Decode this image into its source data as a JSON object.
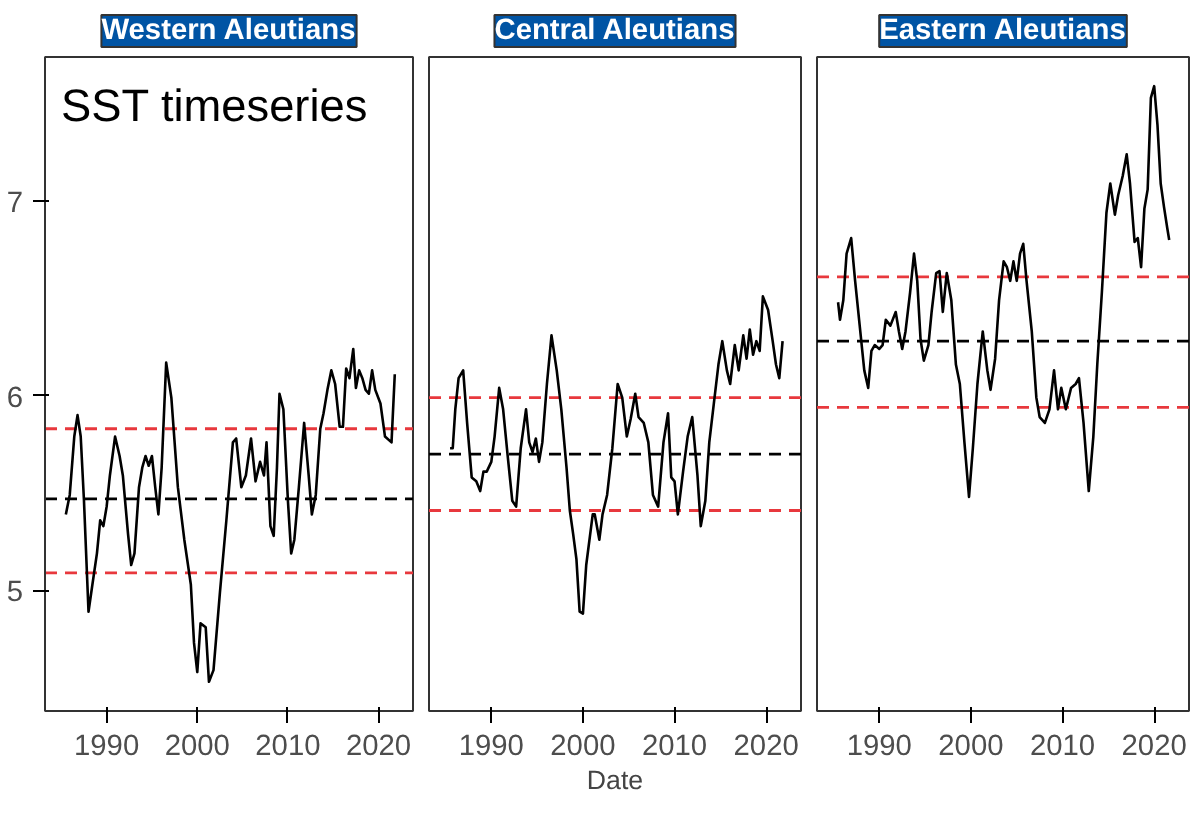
{
  "chart_data": [
    {
      "type": "line",
      "title": "Western Aleutians",
      "annotations": [
        "SST timeseries"
      ],
      "xlim": [
        1983.2,
        2023.8
      ],
      "ylim": [
        4.38,
        7.74
      ],
      "xticks": [
        1990,
        2000,
        2010,
        2020
      ],
      "yticks": [
        5,
        6,
        7
      ],
      "grid": false,
      "line_style": "solid",
      "series": [
        {
          "color": "#000000",
          "x": [
            1985.5,
            1985.93,
            1986.43,
            1986.79,
            1987.14,
            1987.5,
            1988,
            1988.43,
            1988.93,
            1989.29,
            1989.64,
            1990,
            1990.36,
            1990.93,
            1991.43,
            1991.79,
            1992.36,
            1992.71,
            1993.07,
            1993.57,
            1993.93,
            1994.29,
            1994.64,
            1995,
            1995.36,
            1995.71,
            1996.07,
            1996.57,
            1997.14,
            1997.86,
            1998.57,
            1999.29,
            1999.64,
            2000,
            2000.36,
            2000.93,
            2001.29,
            2001.79,
            2002.5,
            2003.21,
            2003.93,
            2004.29,
            2004.86,
            2005.36,
            2005.93,
            2006.43,
            2006.93,
            2007.36,
            2007.64,
            2008.07,
            2008.43,
            2008.79,
            2009.07,
            2009.5,
            2010,
            2010.36,
            2010.71,
            2011.21,
            2011.79,
            2012.29,
            2012.64,
            2013.07,
            2013.57,
            2013.93,
            2014.36,
            2014.79,
            2015.21,
            2015.71,
            2016.07,
            2016.43,
            2016.79,
            2017.21,
            2017.5,
            2017.86,
            2018.21,
            2018.57,
            2018.93,
            2019.29,
            2019.64,
            2020.21,
            2020.71,
            2021.43,
            2021.79
          ],
          "values": [
            5.39,
            5.49,
            5.79,
            5.9,
            5.79,
            5.46,
            4.89,
            5.03,
            5.19,
            5.36,
            5.33,
            5.43,
            5.59,
            5.79,
            5.69,
            5.59,
            5.29,
            5.13,
            5.19,
            5.53,
            5.63,
            5.69,
            5.64,
            5.69,
            5.53,
            5.39,
            5.63,
            6.17,
            5.99,
            5.53,
            5.26,
            5.03,
            4.73,
            4.58,
            4.83,
            4.81,
            4.53,
            4.59,
            4.99,
            5.36,
            5.76,
            5.78,
            5.53,
            5.59,
            5.78,
            5.56,
            5.66,
            5.59,
            5.76,
            5.33,
            5.28,
            5.63,
            6.01,
            5.93,
            5.46,
            5.19,
            5.26,
            5.53,
            5.86,
            5.59,
            5.39,
            5.49,
            5.83,
            5.91,
            6.03,
            6.13,
            6.06,
            5.84,
            5.84,
            6.14,
            6.09,
            6.24,
            6.04,
            6.13,
            6.09,
            6.03,
            6.01,
            6.13,
            6.03,
            5.96,
            5.79,
            5.76,
            6.11
          ]
        }
      ],
      "ref_lines": [
        {
          "axis": "y",
          "value": 5.83,
          "color": "#e8383d",
          "line_style": "dashed"
        },
        {
          "axis": "y",
          "value": 5.47,
          "color": "#000000",
          "line_style": "dashed"
        },
        {
          "axis": "y",
          "value": 5.09,
          "color": "#e8383d",
          "line_style": "dashed"
        }
      ]
    },
    {
      "type": "line",
      "title": "Central Aleutians",
      "xlabel": "Date",
      "xlim": [
        1983.2,
        2023.8
      ],
      "ylim": [
        4.38,
        7.74
      ],
      "xticks": [
        1990,
        2000,
        2010,
        2020
      ],
      "yticks": [
        5,
        6,
        7
      ],
      "tick_labels": "x",
      "grid": false,
      "line_style": "solid",
      "series": [
        {
          "color": "#000000",
          "x": [
            1985.5,
            1985.79,
            1986.07,
            1986.43,
            1986.93,
            1987.36,
            1987.86,
            1988.36,
            1988.79,
            1989.14,
            1989.5,
            1990,
            1990.36,
            1990.86,
            1991.29,
            1991.79,
            1992.29,
            1992.71,
            1993.21,
            1993.79,
            1994.14,
            1994.5,
            1994.86,
            1995.21,
            1995.57,
            1996.07,
            1996.57,
            1997.14,
            1997.64,
            1998.21,
            1998.57,
            1998.93,
            1999.29,
            1999.64,
            2000,
            2000.36,
            2001.07,
            2001.29,
            2001.79,
            2002.14,
            2002.64,
            2003.21,
            2003.79,
            2004.29,
            2004.79,
            2005.21,
            2005.71,
            2006.07,
            2006.64,
            2007.14,
            2007.64,
            2008.21,
            2008.79,
            2009.29,
            2009.64,
            2010,
            2010.36,
            2010.93,
            2011.43,
            2011.93,
            2012.5,
            2012.86,
            2013.36,
            2013.79,
            2014.29,
            2014.79,
            2015.21,
            2015.71,
            2016.07,
            2016.57,
            2017,
            2017.5,
            2017.86,
            2018.21,
            2018.57,
            2018.93,
            2019.29,
            2019.64,
            2020.21,
            2020.71,
            2021.07,
            2021.43,
            2021.79
          ],
          "values": [
            5.73,
            5.73,
            5.93,
            6.09,
            6.13,
            5.86,
            5.58,
            5.56,
            5.51,
            5.61,
            5.61,
            5.66,
            5.79,
            6.04,
            5.93,
            5.69,
            5.46,
            5.43,
            5.73,
            5.93,
            5.76,
            5.71,
            5.78,
            5.66,
            5.76,
            6.06,
            6.31,
            6.13,
            5.93,
            5.63,
            5.41,
            5.29,
            5.16,
            4.89,
            4.88,
            5.13,
            5.39,
            5.39,
            5.26,
            5.39,
            5.49,
            5.73,
            6.06,
            5.99,
            5.79,
            5.88,
            6.01,
            5.89,
            5.86,
            5.76,
            5.49,
            5.43,
            5.76,
            5.91,
            5.58,
            5.56,
            5.39,
            5.61,
            5.79,
            5.89,
            5.59,
            5.33,
            5.46,
            5.76,
            5.96,
            6.16,
            6.28,
            6.13,
            6.06,
            6.26,
            6.13,
            6.31,
            6.19,
            6.34,
            6.21,
            6.28,
            6.23,
            6.51,
            6.44,
            6.28,
            6.16,
            6.09,
            6.28
          ]
        }
      ],
      "ref_lines": [
        {
          "axis": "y",
          "value": 5.99,
          "color": "#e8383d",
          "line_style": "dashed"
        },
        {
          "axis": "y",
          "value": 5.7,
          "color": "#000000",
          "line_style": "dashed"
        },
        {
          "axis": "y",
          "value": 5.41,
          "color": "#e8383d",
          "line_style": "dashed"
        }
      ]
    },
    {
      "type": "line",
      "title": "Eastern Aleutians",
      "xlim": [
        1983.2,
        2023.8
      ],
      "ylim": [
        4.38,
        7.74
      ],
      "xticks": [
        1990,
        2000,
        2010,
        2020
      ],
      "yticks": [
        5,
        6,
        7
      ],
      "tick_labels": "x",
      "grid": false,
      "line_style": "solid",
      "series": [
        {
          "color": "#000000",
          "x": [
            1985.5,
            1985.71,
            1986.07,
            1986.43,
            1986.93,
            1987.36,
            1987.86,
            1988.36,
            1988.79,
            1989.14,
            1989.5,
            1990,
            1990.36,
            1990.71,
            1991.21,
            1991.79,
            1992.14,
            1992.5,
            1992.86,
            1993.36,
            1993.79,
            1994.14,
            1994.5,
            1994.86,
            1995.36,
            1995.71,
            1996.21,
            1996.57,
            1996.93,
            1997.36,
            1997.86,
            1998.36,
            1998.79,
            1999.29,
            1999.79,
            2000.21,
            2000.71,
            2001.29,
            2001.79,
            2002.14,
            2002.64,
            2003.07,
            2003.57,
            2003.93,
            2004.29,
            2004.64,
            2005,
            2005.36,
            2005.71,
            2006.07,
            2006.64,
            2007.14,
            2007.5,
            2008.07,
            2008.57,
            2009.07,
            2009.5,
            2009.86,
            2010.36,
            2010.93,
            2011.43,
            2011.79,
            2012.29,
            2012.86,
            2013.36,
            2013.79,
            2014.29,
            2014.79,
            2015.21,
            2015.71,
            2016.07,
            2016.57,
            2017,
            2017.36,
            2017.86,
            2018.21,
            2018.57,
            2018.93,
            2019.29,
            2019.64,
            2020,
            2020.36,
            2020.71,
            2021.07,
            2021.43,
            2021.64
          ],
          "values": [
            6.48,
            6.39,
            6.49,
            6.73,
            6.81,
            6.59,
            6.36,
            6.13,
            6.04,
            6.23,
            6.26,
            6.24,
            6.26,
            6.39,
            6.36,
            6.43,
            6.33,
            6.24,
            6.33,
            6.53,
            6.73,
            6.59,
            6.29,
            6.18,
            6.26,
            6.43,
            6.63,
            6.64,
            6.43,
            6.63,
            6.49,
            6.16,
            6.06,
            5.76,
            5.48,
            5.73,
            6.06,
            6.33,
            6.13,
            6.03,
            6.19,
            6.49,
            6.69,
            6.66,
            6.59,
            6.69,
            6.59,
            6.73,
            6.78,
            6.59,
            6.33,
            5.99,
            5.89,
            5.86,
            5.93,
            6.13,
            5.93,
            6.04,
            5.93,
            6.04,
            6.06,
            6.09,
            5.86,
            5.51,
            5.79,
            6.16,
            6.53,
            6.94,
            7.09,
            6.93,
            7.03,
            7.13,
            7.24,
            7.09,
            6.79,
            6.81,
            6.66,
            6.96,
            7.06,
            7.53,
            7.59,
            7.39,
            7.09,
            6.97,
            6.86,
            6.8
          ]
        }
      ],
      "ref_lines": [
        {
          "axis": "y",
          "value": 6.61,
          "color": "#e8383d",
          "line_style": "dashed"
        },
        {
          "axis": "y",
          "value": 6.28,
          "color": "#000000",
          "line_style": "dashed"
        },
        {
          "axis": "y",
          "value": 5.94,
          "color": "#e8383d",
          "line_style": "dashed"
        }
      ]
    }
  ]
}
